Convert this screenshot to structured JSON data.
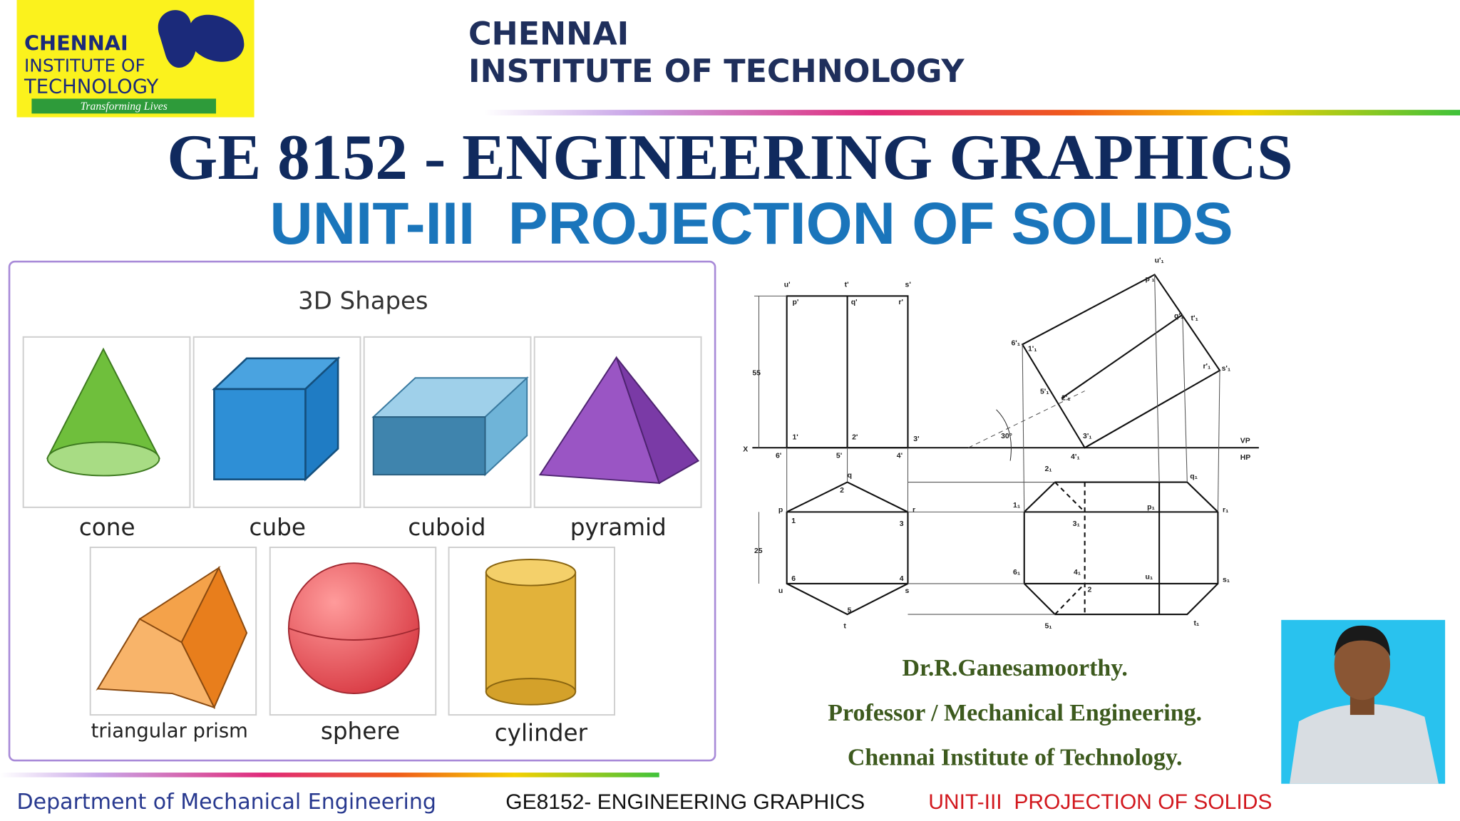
{
  "logo": {
    "name": [
      "CHENNAI",
      "INSTITUTE OF",
      "TECHNOLOGY"
    ],
    "tagline": "Transforming Lives"
  },
  "header": {
    "institute": [
      "CHENNAI",
      "INSTITUTE OF TECHNOLOGY"
    ]
  },
  "title": "GE 8152 - ENGINEERING GRAPHICS",
  "subtitle": "UNIT-III  PROJECTION OF SOLIDS",
  "shapes_panel": {
    "heading": "3D Shapes",
    "shapes": [
      "cone",
      "cube",
      "cuboid",
      "pyramid",
      "triangular prism",
      "sphere",
      "cylinder"
    ]
  },
  "drawing": {
    "labels": [
      "u'",
      "t'",
      "s'",
      "p'",
      "q'",
      "r'",
      "1'",
      "2'",
      "3'",
      "6'",
      "5'",
      "4'",
      "X",
      "55",
      "VP",
      "HP",
      "30°",
      "u'₁",
      "p'₁",
      "q'₁",
      "t'₁",
      "6'₁",
      "1'₁",
      "r'₁",
      "s'₁",
      "5'₁",
      "2'₁",
      "3'₁",
      "4'₁",
      "q",
      "2",
      "p",
      "1",
      "r",
      "3",
      "25",
      "6",
      "u",
      "4",
      "s",
      "5",
      "t",
      "2₁",
      "q₁",
      "1₁",
      "p₁",
      "r₁",
      "3₁",
      "4₁",
      "6₁",
      "u₁",
      "s₁",
      "2",
      "5₁",
      "t₁"
    ]
  },
  "author": {
    "name": "Dr.R.Ganesamoorthy.",
    "position": "Professor / Mechanical Engineering.",
    "institute": "Chennai Institute of Technology."
  },
  "footer": {
    "department": "Department of Mechanical Engineering",
    "course": "GE8152- ENGINEERING GRAPHICS",
    "unit": "UNIT-III  PROJECTION OF SOLIDS"
  }
}
